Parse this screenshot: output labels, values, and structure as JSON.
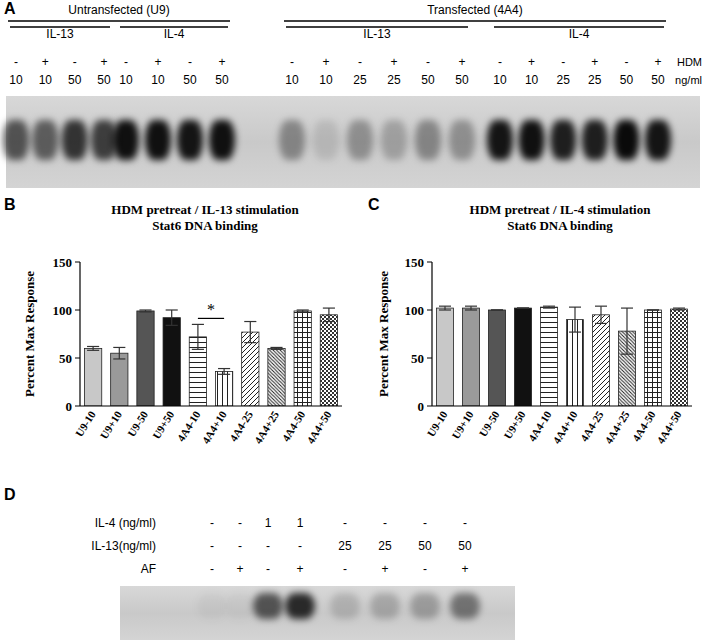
{
  "chart_data": [
    {
      "type": "blot",
      "panel": "A",
      "row_labels": [
        "HDM",
        "ng/ml"
      ],
      "groups": [
        {
          "label": "Untransfected (U9)",
          "subgroups": [
            {
              "label": "IL-13",
              "hdm": [
                "-",
                "+",
                "-",
                "+"
              ],
              "dose": [
                10,
                10,
                50,
                50
              ],
              "intensity": [
                0.6,
                0.55,
                0.75,
                0.7
              ]
            },
            {
              "label": "IL-4",
              "hdm": [
                "-",
                "+",
                "-",
                "+"
              ],
              "dose": [
                10,
                10,
                50,
                50
              ],
              "intensity": [
                0.92,
                0.92,
                0.9,
                0.92
              ]
            }
          ]
        },
        {
          "label": "Transfected (4A4)",
          "subgroups": [
            {
              "label": "IL-13",
              "hdm": [
                "-",
                "+",
                "-",
                "+",
                "-",
                "+"
              ],
              "dose": [
                10,
                10,
                25,
                25,
                50,
                50
              ],
              "intensity": [
                0.35,
                0.1,
                0.3,
                0.22,
                0.35,
                0.3
              ]
            },
            {
              "label": "IL-4",
              "hdm": [
                "-",
                "+",
                "-",
                "+",
                "-",
                "+"
              ],
              "dose": [
                10,
                10,
                25,
                25,
                50,
                50
              ],
              "intensity": [
                0.9,
                0.92,
                0.85,
                0.85,
                0.95,
                0.9
              ]
            }
          ]
        }
      ]
    },
    {
      "type": "bar",
      "panel": "B",
      "title": "HDM pretreat / IL-13 stimulation",
      "subtitle": "Stat6 DNA binding",
      "ylabel": "Percent Max Response",
      "categories": [
        "U9-10",
        "U9+10",
        "U9-50",
        "U9+50",
        "4A4-10",
        "4A4+10",
        "4A4-25",
        "4A4+25",
        "4A4-50",
        "4A4+50"
      ],
      "values": [
        60,
        55,
        99,
        92,
        72,
        36,
        77,
        60,
        99,
        95
      ],
      "errors": [
        2,
        6,
        1,
        8,
        13,
        3,
        11,
        1,
        1,
        7
      ],
      "colors": [
        "#c8c8c8",
        "#9a9a9a",
        "#555555",
        "#111111",
        "#ffffff",
        "#ffffff",
        "#ffffff",
        "#ffffff",
        "#ffffff",
        "#ffffff"
      ],
      "significance": {
        "text": "*",
        "pair": [
          "4A4-10",
          "4A4+10"
        ]
      },
      "ylim": [
        0,
        150
      ],
      "yticks": [
        0,
        50,
        100,
        150
      ]
    },
    {
      "type": "bar",
      "panel": "C",
      "title": "HDM pretreat / IL-4 stimulation",
      "subtitle": "Stat6 DNA binding",
      "ylabel": "Percent Max Response",
      "categories": [
        "U9-10",
        "U9+10",
        "U9-50",
        "U9+50",
        "4A4-10",
        "4A4+10",
        "4A4-25",
        "4A4+25",
        "4A4-50",
        "4A4+50"
      ],
      "values": [
        102,
        102,
        100,
        102,
        103,
        90,
        95,
        78,
        100,
        101
      ],
      "errors": [
        2,
        2,
        0,
        0,
        1,
        13,
        9,
        24,
        0,
        1
      ],
      "colors": [
        "#c8c8c8",
        "#9a9a9a",
        "#555555",
        "#111111",
        "#ffffff",
        "#ffffff",
        "#ffffff",
        "#ffffff",
        "#ffffff",
        "#ffffff"
      ],
      "ylim": [
        0,
        150
      ],
      "yticks": [
        0,
        50,
        100,
        150
      ]
    },
    {
      "type": "blot",
      "panel": "D",
      "rows": [
        {
          "label": "IL-4 (ng/ml)",
          "values": [
            "-",
            "-",
            1,
            1,
            "-",
            "-",
            "-",
            "-"
          ]
        },
        {
          "label": "IL-13(ng/ml)",
          "values": [
            "-",
            "-",
            "-",
            "-",
            25,
            25,
            50,
            50
          ]
        },
        {
          "label": "AF",
          "values": [
            "-",
            "+",
            "-",
            "+",
            "-",
            "+",
            "-",
            "+"
          ]
        }
      ],
      "intensity": [
        0.04,
        0.04,
        0.6,
        0.8,
        0.15,
        0.2,
        0.25,
        0.45
      ]
    }
  ]
}
